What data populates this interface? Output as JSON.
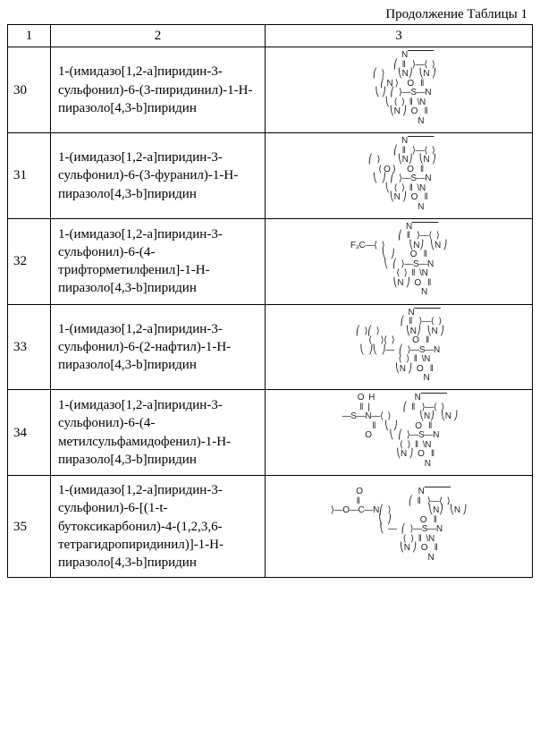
{
  "caption": "Продолжение Таблицы 1",
  "headers": {
    "c1": "1",
    "c2": "2",
    "c3": "3"
  },
  "rows": [
    {
      "num": "30",
      "name": "1-(имидазо[1,2-а]пиридин-3-сульфонил)-6-(3-пиридинил)-1-Н-пиразоло[4,3-b]пиридин",
      "struct": "                 N⎺⎺⎺\n              ⎛  ‖   ⟩—⟨  ⟩\n     ⎛  ⟩      ⎝N⎠   ⎝N ⎠\n   ⎛ N ⟩    O   ‖\n    ⎝ ⎠  ⎛  ⟩—S—N\n      ⎝  ⟨  ⟩  ‖  \\N\n         ⎝N ⎠  O   ‖\n                    N"
    },
    {
      "num": "31",
      "name": "1-(имидазо[1,2-а]пиридин-3-сульфонил)-6-(3-фуранил)-1-Н-пиразоло[4,3-b]пиридин",
      "struct": "                 N⎺⎺⎺\n              ⎛  ‖   ⟩—⟨  ⟩\n   ⎛  ⟩        ⎝N⎠   ⎝N ⎠\n  ⟨ O ⟩     O   ‖\n   ⎝  ⎠  ⎛  ⟩—S—N\n      ⎝  ⟨  ⟩  ‖  \\N\n         ⎝N ⎠  O   ‖\n                    N"
    },
    {
      "num": "32",
      "name": "1-(имидазо[1,2-а]пиридин-3-сульфонил)-6-(4-трифторметилфенил]-1-Н-пиразоло[4,3-b]пиридин",
      "struct": "                     N⎺⎺⎺\n                  ⎛  ‖   ⟩—⟨  ⟩\nF₃C—⟨  ⟩           ⎝N⎠   ⎝N ⎠\n     ⎝  ⎠       O   ‖\n         ⎝  ⎛  ⟩—S—N\n            ⟨  ⟩  ‖  \\N\n            ⎝N ⎠  O   ‖\n                       N"
    },
    {
      "num": "33",
      "name": "1-(имидазо[1,2-а]пиридин-3-сульфонил)-6-(2-нафтил)-1-Н-пиразоло[4,3-b]пиридин",
      "struct": "                       N⎺⎺⎺\n                    ⎛  ‖   ⟩—⟨  ⟩\n ⎛  ⟩⎛  ⟩            ⎝N⎠   ⎝N ⎠\n⟨    ⟩⟨  ⟩        O   ‖\n ⎝  ⎠⎝  ⎠—  ⎛  ⟩—S—N\n              ⟨  ⟩  ‖  \\N\n              ⎝N ⎠  O   ‖\n                         N"
    },
    {
      "num": "34",
      "name": "1-(имидазо[1,2-а]пиридин-3-сульфонил)-6-(4-метилсульфамидофенил)-1-Н-пиразоло[4,3-b]пиридин",
      "struct": "   O  H                  N⎺⎺⎺\n   ‖  |               ⎛  ‖   ⟩—⟨  ⟩\n —S—N—⟨  ⟩             ⎝N⎠   ⎝N ⎠\n   ‖    ⎝  ⎠        O   ‖\n   O        ⎝  ⎛  ⟩—S—N\n               ⟨  ⟩  ‖  \\N\n               ⎝N ⎠  O   ‖\n                          N"
    },
    {
      "num": "35",
      "name": "1-(имидазо[1,2-а]пиридин-3-сульфонил)-6-[(1-t-бутоксикарбонил)-4-(1,2,3,6-тетрагидропиридинил)]-1-Н-пиразоло[4,3-b]пиридин",
      "struct": "    O                         N⎺⎺⎺\n    ‖                      ⎛  ‖   ⟩—⟨  ⟩\n⟩—O—C—N⎛  ⟩                 ⎝N⎠   ⎝N ⎠\n        ⎝  ⎠             O   ‖\n           ⎝  —  ⎛  ⟩—S—N\n                  ⟨  ⟩  ‖  \\N\n                  ⎝N ⎠  O   ‖\n                             N"
    }
  ]
}
